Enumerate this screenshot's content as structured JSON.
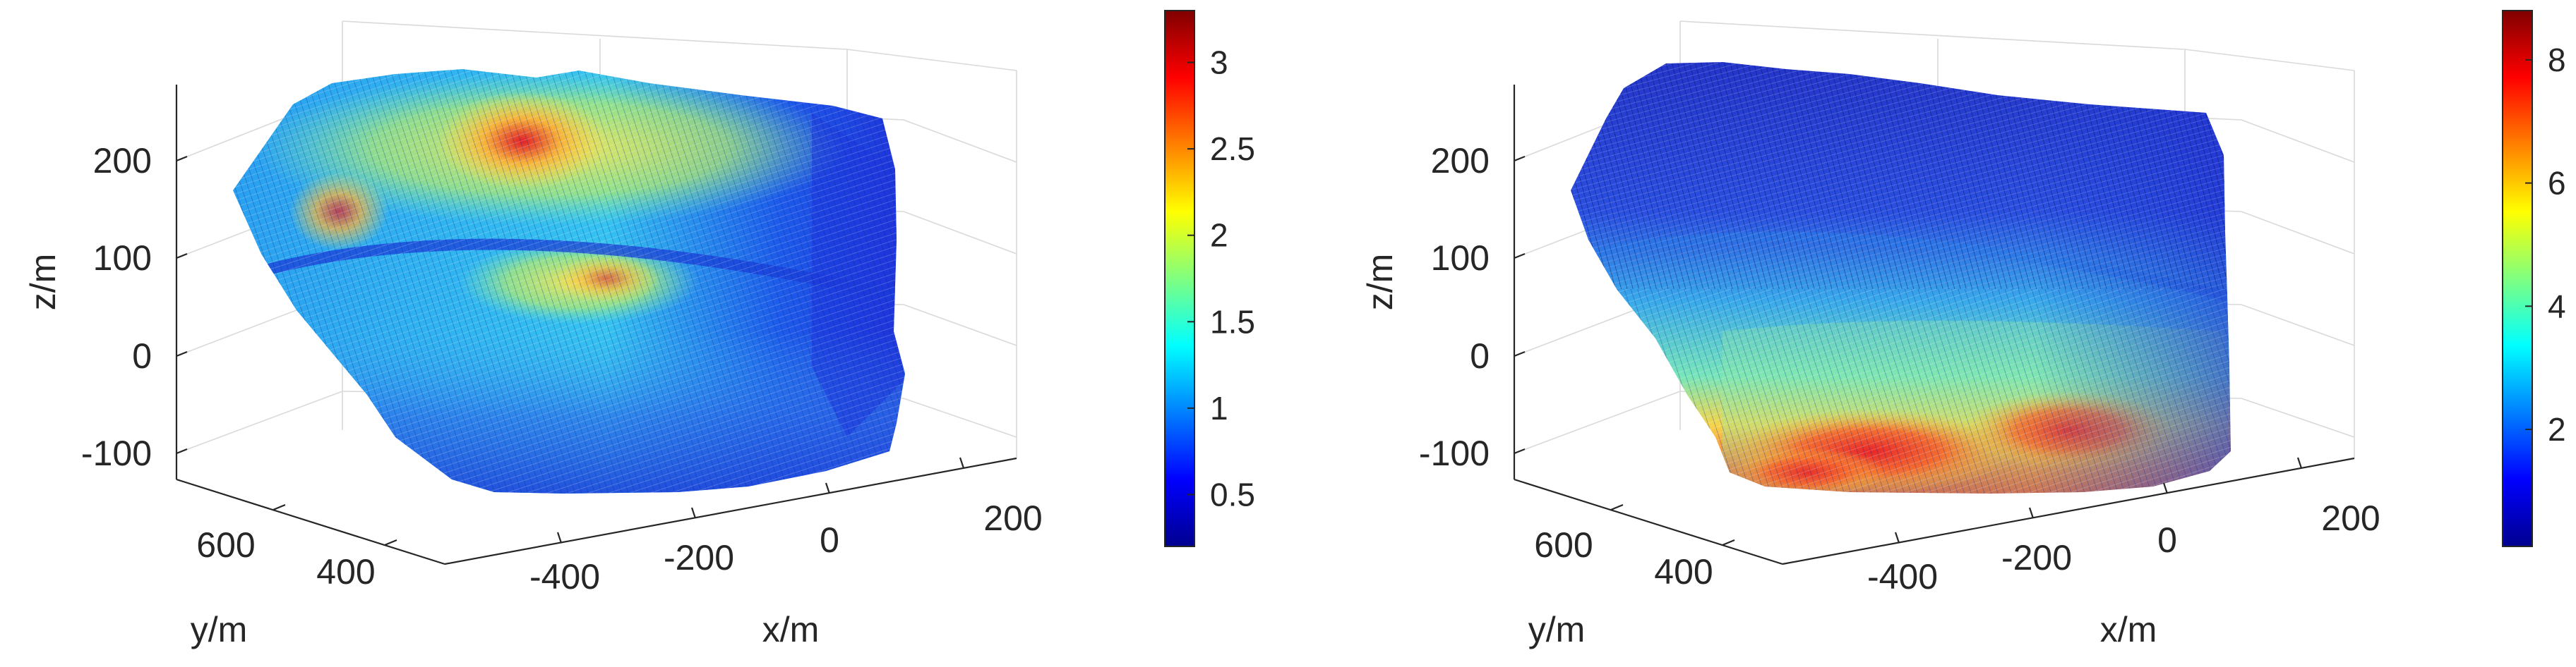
{
  "figure": {
    "colormap": "jet",
    "grid": true
  },
  "chart_data": [
    {
      "type": "surface",
      "xlabel": "x/m",
      "ylabel": "y/m",
      "zlabel": "z/m",
      "x_ticks": [
        -400,
        -200,
        0,
        200
      ],
      "y_ticks": [
        600,
        400
      ],
      "z_ticks": [
        200,
        100,
        0,
        -100
      ],
      "x_tick_labels": [
        "-400",
        "-200",
        "0",
        "200"
      ],
      "y_tick_labels": [
        "600",
        "400"
      ],
      "z_tick_labels": [
        "200",
        "100",
        "0",
        "-100"
      ],
      "colorbar": {
        "range": [
          0.2,
          3.3
        ],
        "ticks": [
          0.5,
          1,
          1.5,
          2,
          2.5,
          3
        ],
        "tick_labels": [
          "0.5",
          "1",
          "1.5",
          "2",
          "2.5",
          "3"
        ]
      },
      "grid": true
    },
    {
      "type": "surface",
      "xlabel": "x/m",
      "ylabel": "y/m",
      "zlabel": "z/m",
      "x_ticks": [
        -400,
        -200,
        0,
        200
      ],
      "y_ticks": [
        600,
        400
      ],
      "z_ticks": [
        200,
        100,
        0,
        -100
      ],
      "x_tick_labels": [
        "-400",
        "-200",
        "0",
        "200"
      ],
      "y_tick_labels": [
        "600",
        "400"
      ],
      "z_tick_labels": [
        "200",
        "100",
        "0",
        "-100"
      ],
      "colorbar": {
        "range": [
          0.1,
          8.8
        ],
        "ticks": [
          2,
          4,
          6,
          8
        ],
        "tick_labels": [
          "2",
          "4",
          "6",
          "8"
        ]
      },
      "grid": true
    }
  ]
}
